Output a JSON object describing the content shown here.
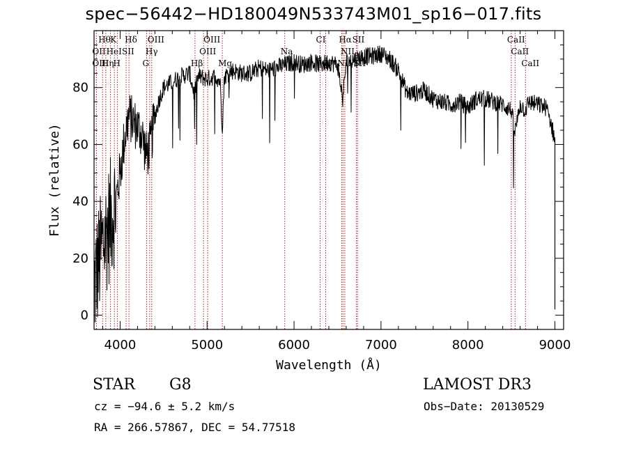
{
  "title": "spec−56442−HD180049N533743M01_sp16−017.fits",
  "info": {
    "class": "STAR",
    "subclass": "G8",
    "cz": "cz = −94.6 ± 5.2 km/s",
    "radec": "RA = 266.57867, DEC =  54.77518",
    "survey": "LAMOST DR3",
    "obsdate": "Obs−Date: 20130529"
  },
  "chart_data": {
    "type": "line",
    "xlabel": "Wavelength (Å)",
    "ylabel": "Flux (relative)",
    "xlim": [
      3700,
      9100
    ],
    "ylim": [
      -5,
      100
    ],
    "xticks": [
      4000,
      5000,
      6000,
      7000,
      8000,
      9000
    ],
    "yticks": [
      0,
      20,
      40,
      60,
      80
    ],
    "series": [
      {
        "x": [
          3700,
          3750,
          3800,
          3850,
          3900,
          3950,
          4000,
          4050,
          4100,
          4150,
          4200,
          4250,
          4300,
          4350,
          4400,
          4450,
          4500,
          4600,
          4700,
          4800,
          4850,
          4900,
          5000,
          5100,
          5150,
          5175,
          5200,
          5300,
          5400,
          5500,
          5600,
          5700,
          5800,
          5900,
          6000,
          6100,
          6200,
          6300,
          6400,
          6500,
          6560,
          6600,
          6700,
          6800,
          6900,
          7000,
          7100,
          7200,
          7300,
          7400,
          7500,
          7600,
          7700,
          7800,
          7900,
          8000,
          8100,
          8200,
          8300,
          8400,
          8500,
          8540,
          8600,
          8660,
          8700,
          8800,
          8900,
          8950,
          9000
        ],
        "y": [
          10,
          18,
          25,
          30,
          35,
          40,
          50,
          62,
          70,
          68,
          66,
          64,
          56,
          60,
          70,
          76,
          80,
          82,
          84,
          85,
          78,
          84,
          83,
          84,
          82,
          66,
          84,
          86,
          85,
          85,
          87,
          86,
          87,
          88,
          89,
          88,
          89,
          88,
          89,
          88,
          76,
          89,
          90,
          91,
          91,
          92,
          90,
          86,
          78,
          78,
          79,
          76,
          75,
          74,
          75,
          73,
          76,
          76,
          75,
          74,
          72,
          64,
          74,
          72,
          75,
          74,
          73,
          68,
          62
        ]
      }
    ],
    "lines": [
      {
        "name": "Hθ",
        "x": 3798,
        "row": 0
      },
      {
        "name": "K",
        "x": 3934,
        "row": 0
      },
      {
        "name": "Hδ",
        "x": 4102,
        "row": 0
      },
      {
        "name": "OIII",
        "x": 4363,
        "row": 0
      },
      {
        "name": "OIII",
        "x": 5007,
        "row": 0
      },
      {
        "name": "Na",
        "x": 5893,
        "row": 1
      },
      {
        "name": "CI",
        "x": 6300,
        "row": 0
      },
      {
        "name": "Hα",
        "x": 6563,
        "row": 0
      },
      {
        "name": "SII",
        "x": 6717,
        "row": 0
      },
      {
        "name": "CaII",
        "x": 8498,
        "row": 0
      },
      {
        "name": "OII",
        "x": 3727,
        "row": 1
      },
      {
        "name": "HeI",
        "x": 3889,
        "row": 1
      },
      {
        "name": "SII",
        "x": 4069,
        "row": 1
      },
      {
        "name": "Hγ",
        "x": 4340,
        "row": 1
      },
      {
        "name": "OIII",
        "x": 4959,
        "row": 1
      },
      {
        "name": "NII",
        "x": 6584,
        "row": 1
      },
      {
        "name": "CaII",
        "x": 8542,
        "row": 1
      },
      {
        "name": "OIII",
        "x": 3727,
        "row": 2
      },
      {
        "name": "Hη",
        "x": 3835,
        "row": 2
      },
      {
        "name": "H",
        "x": 3968,
        "row": 2
      },
      {
        "name": "G",
        "x": 4305,
        "row": 2
      },
      {
        "name": "Hβ",
        "x": 4861,
        "row": 2
      },
      {
        "name": "Mg",
        "x": 5175,
        "row": 2
      },
      {
        "name": "OI",
        "x": 6364,
        "row": 2
      },
      {
        "name": "NII",
        "x": 6548,
        "row": 2
      },
      {
        "name": "SII",
        "x": 6731,
        "row": 2
      },
      {
        "name": "CaII",
        "x": 8662,
        "row": 2
      }
    ]
  }
}
